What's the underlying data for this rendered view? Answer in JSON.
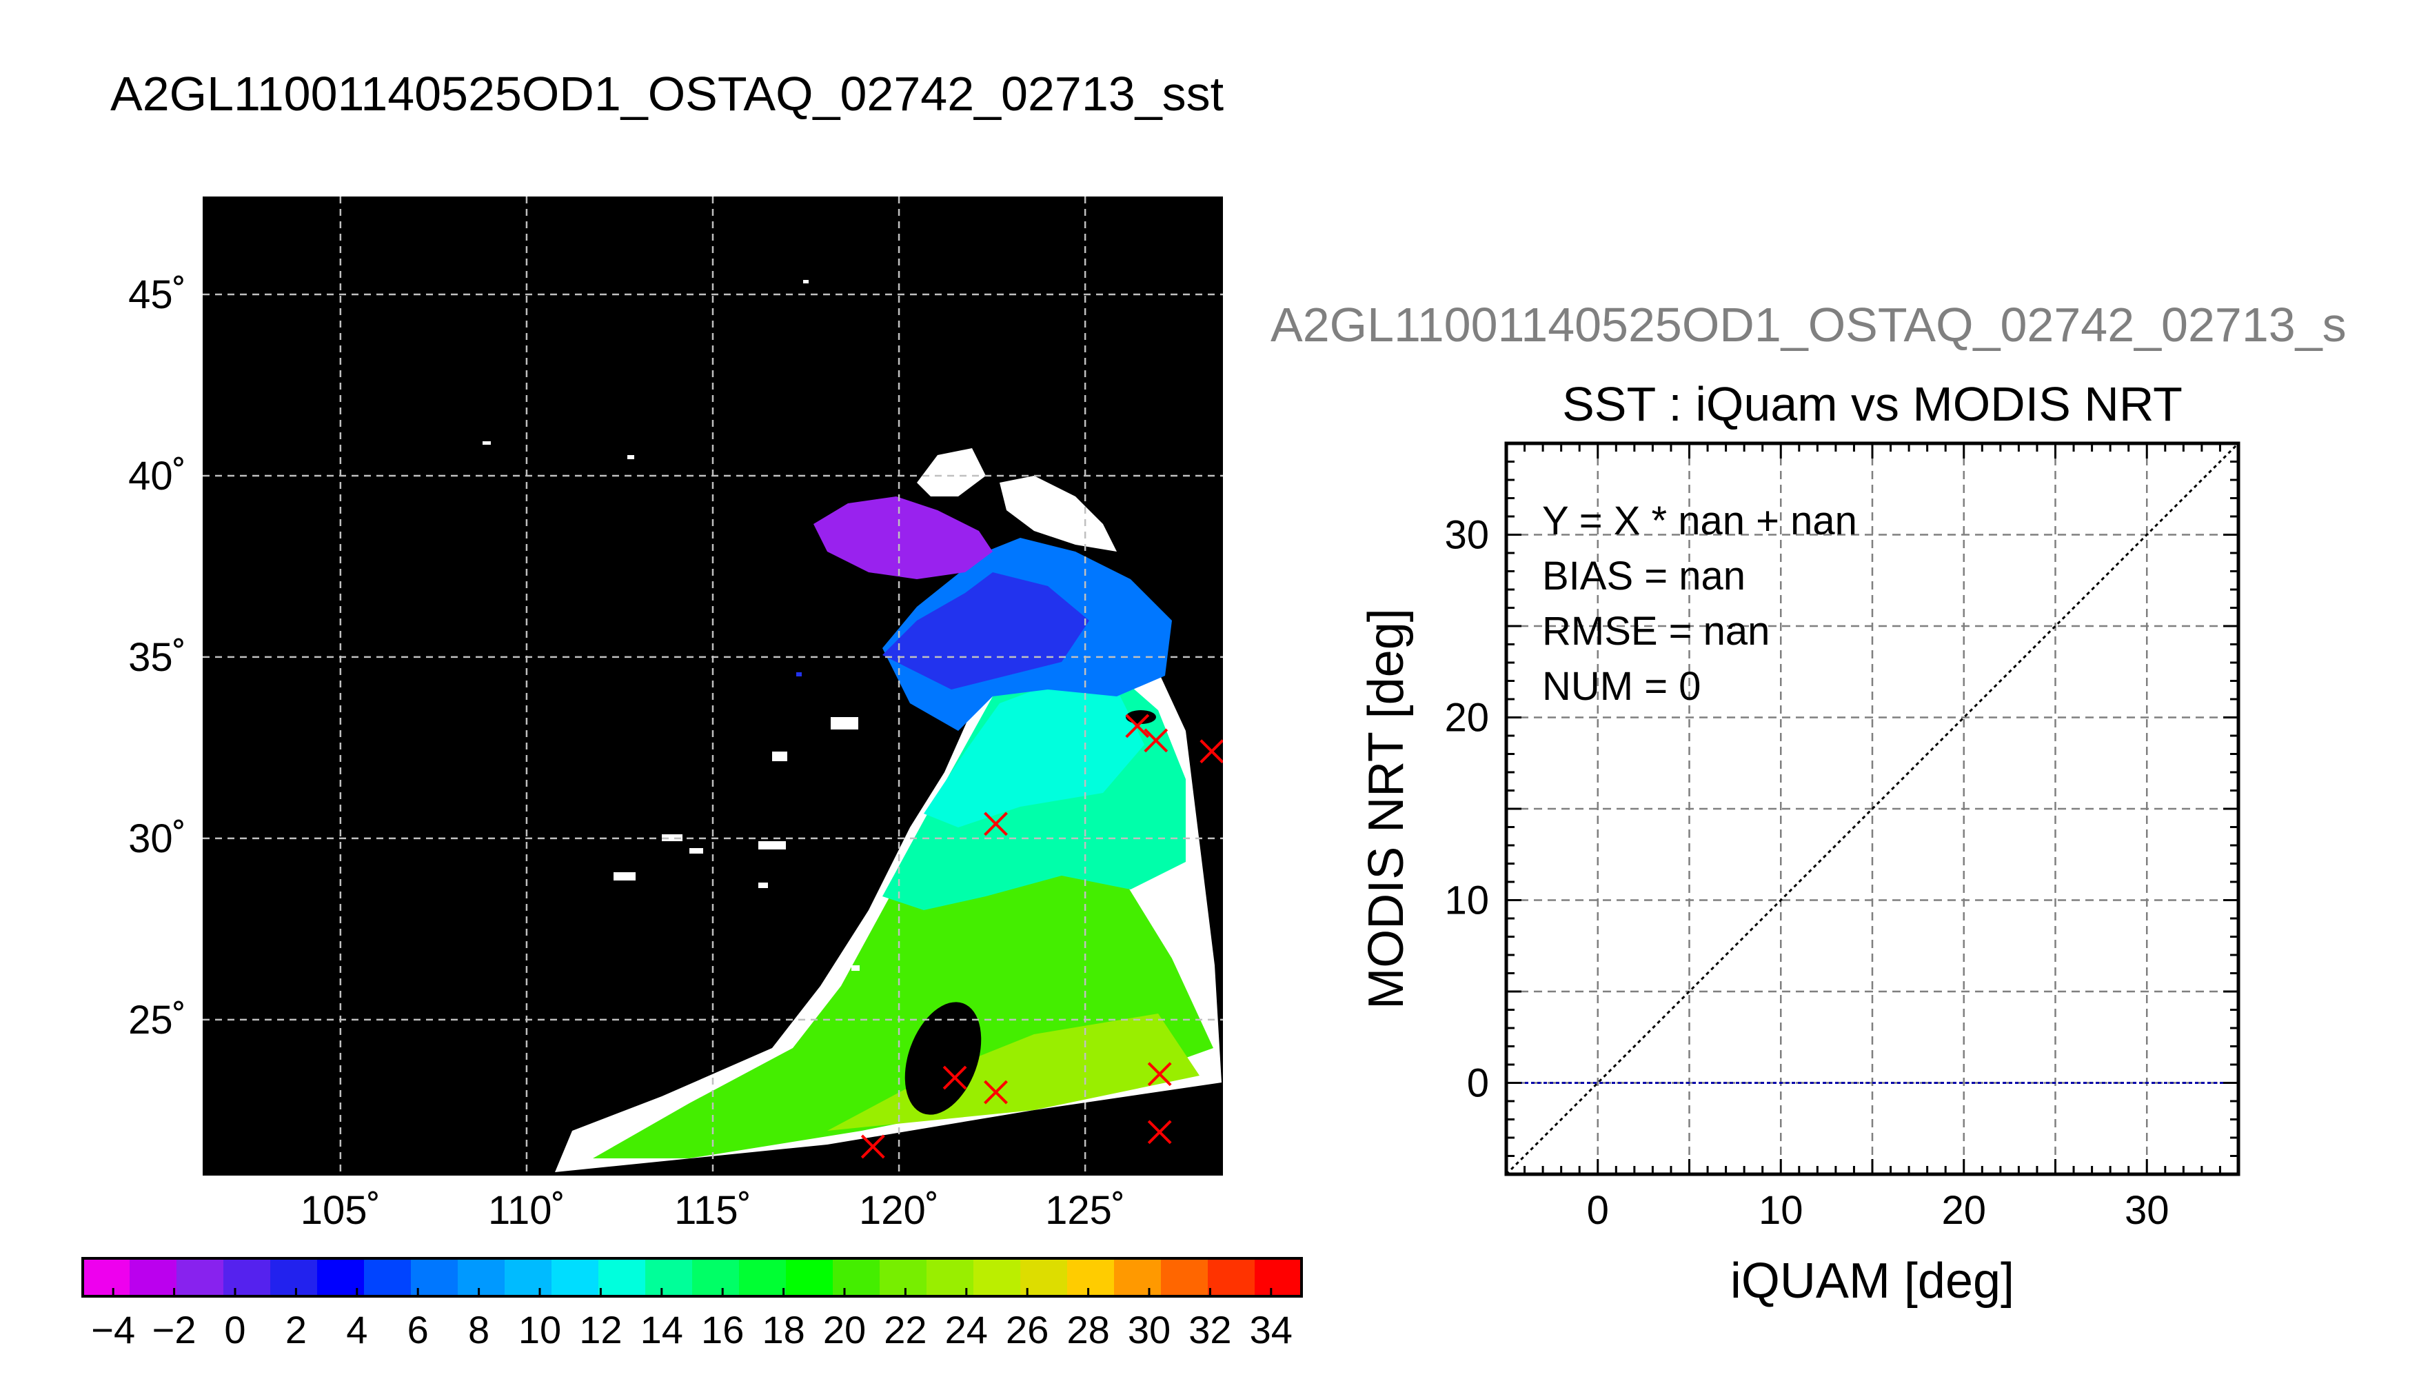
{
  "colors": {
    "background": "#ffffff",
    "map_background": "#000000",
    "land_white": "#ffffff",
    "marker": "#ff0000",
    "grid": "#c0c0c0",
    "scatter_grid": "#7f7f7f",
    "one_to_one_line": "#000000",
    "zero_line": "#0000aa",
    "scatter_title_gray": "#808080"
  },
  "chart_data": [
    {
      "type": "heatmap",
      "title": "A2GL11001140525OD1_OSTAQ_02742_02713_sst",
      "x_ticks": [
        "105˚",
        "110˚",
        "115˚",
        "120˚",
        "125˚"
      ],
      "y_ticks": [
        "25˚",
        "30˚",
        "35˚",
        "40˚",
        "45˚"
      ],
      "x_tick_values": [
        105,
        110,
        115,
        120,
        125
      ],
      "y_tick_values": [
        25,
        30,
        35,
        40,
        45
      ],
      "xlim": [
        101.3,
        128.7
      ],
      "ylim": [
        20.7,
        47.7
      ],
      "grid": true,
      "markers": [
        {
          "lon": 126.4,
          "lat": 33.1
        },
        {
          "lon": 126.9,
          "lat": 32.7
        },
        {
          "lon": 128.4,
          "lat": 32.4
        },
        {
          "lon": 122.6,
          "lat": 30.4
        },
        {
          "lon": 121.5,
          "lat": 23.4
        },
        {
          "lon": 122.6,
          "lat": 23.0
        },
        {
          "lon": 127.0,
          "lat": 23.5
        },
        {
          "lon": 119.3,
          "lat": 21.5
        },
        {
          "lon": 127.0,
          "lat": 21.9
        }
      ]
    },
    {
      "type": "colorbar",
      "tick_labels": [
        "−4",
        "−2",
        "0",
        "2",
        "4",
        "6",
        "8",
        "10",
        "12",
        "14",
        "16",
        "18",
        "20",
        "22",
        "24",
        "26",
        "28",
        "30",
        "32",
        "34"
      ],
      "min": -5,
      "max": 35,
      "step": 2,
      "colors": [
        "#ee00ee",
        "#bb00ee",
        "#8822ee",
        "#5522ee",
        "#2222ee",
        "#0000ff",
        "#0044ff",
        "#0077ff",
        "#0099ff",
        "#00bbff",
        "#00ddff",
        "#00ffdd",
        "#00ff99",
        "#00ff66",
        "#00ff33",
        "#00ff00",
        "#44ee00",
        "#77ee00",
        "#99ee00",
        "#bbee00",
        "#dddd00",
        "#ffcc00",
        "#ff9900",
        "#ff6600",
        "#ff3300",
        "#ff0000"
      ]
    },
    {
      "type": "scatter",
      "file_title": "A2GL11001140525OD1_OSTAQ_02742_02713_s",
      "title": "SST : iQuam vs MODIS NRT",
      "xlabel": "iQUAM [deg]",
      "ylabel": "MODIS NRT [deg]",
      "xlim": [
        -5,
        35
      ],
      "ylim": [
        -5,
        35
      ],
      "x_ticks": [
        0,
        10,
        20,
        30
      ],
      "y_ticks": [
        0,
        10,
        20,
        30
      ],
      "grid": true,
      "points": [],
      "lines": [
        {
          "kind": "one-to-one",
          "from": [
            -5,
            -5
          ],
          "to": [
            35,
            35
          ]
        },
        {
          "kind": "horizontal",
          "y": 0
        }
      ],
      "stats": {
        "equation": "Y = X * nan + nan",
        "bias": "BIAS = nan",
        "rmse": "RMSE = nan",
        "num": "NUM = 0"
      }
    }
  ]
}
